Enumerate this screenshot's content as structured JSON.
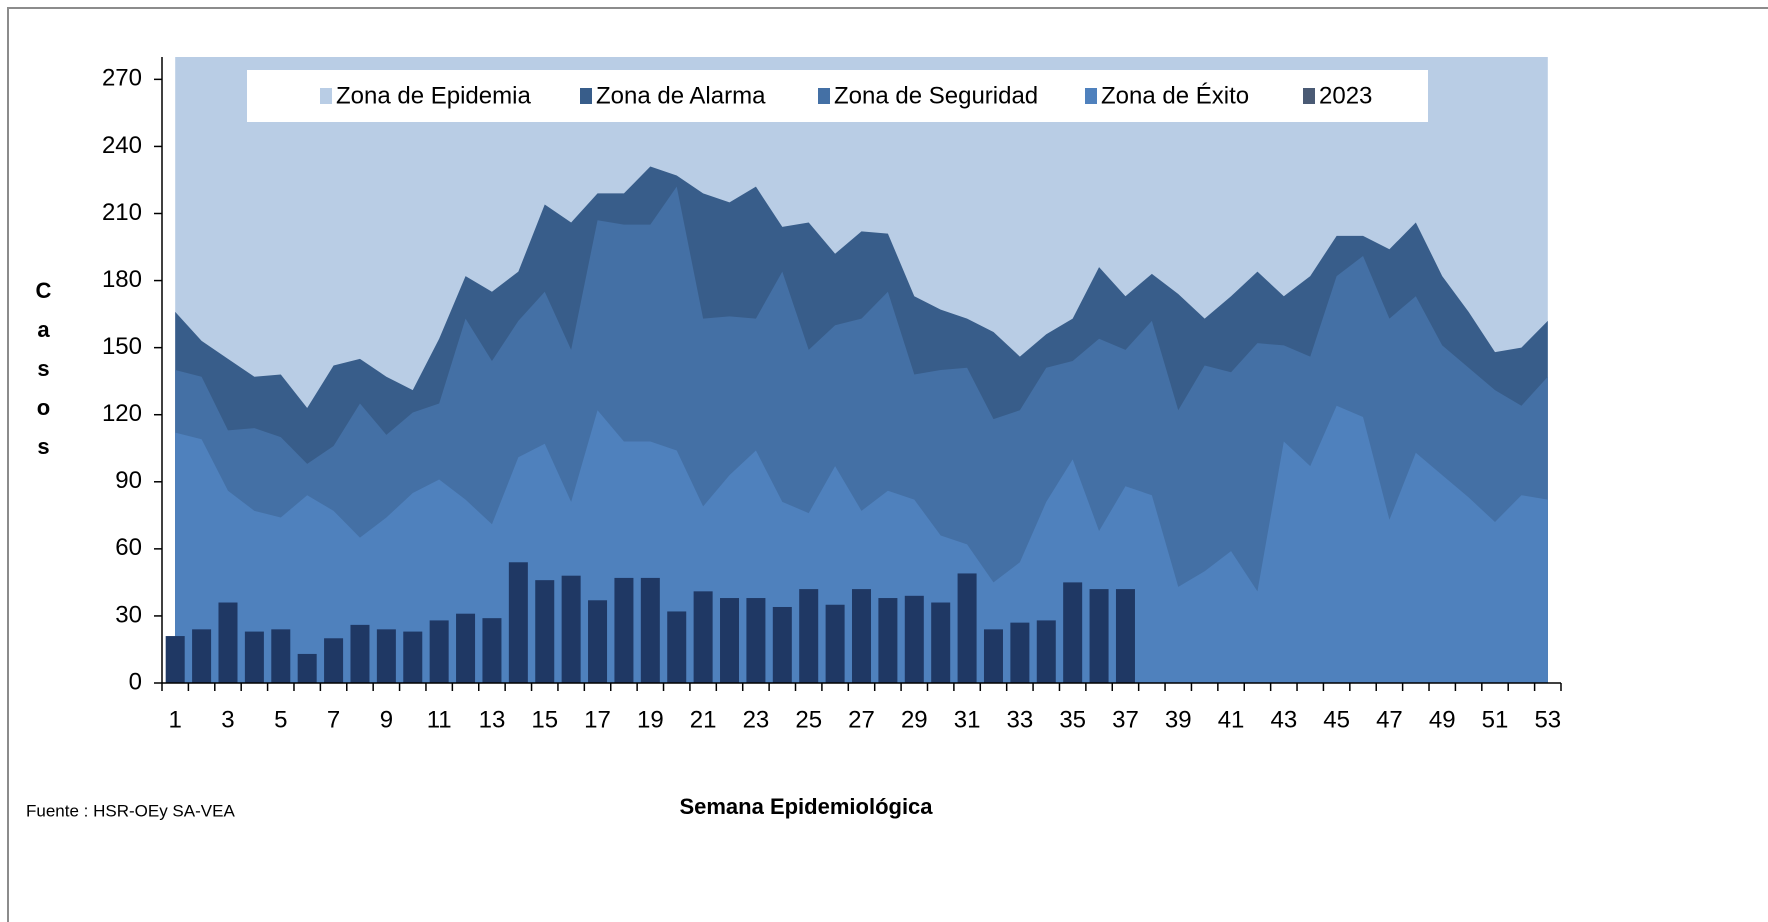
{
  "chart_data": {
    "type": "area",
    "y_label": "Casos",
    "x_label": "Semana Epidemiológica",
    "source": "Fuente : HSR-OEy SA-VEA",
    "categories": [
      1,
      null,
      3,
      null,
      5,
      null,
      7,
      null,
      9,
      null,
      11,
      null,
      13,
      null,
      15,
      null,
      17,
      null,
      19,
      null,
      21,
      null,
      23,
      null,
      25,
      null,
      27,
      null,
      29,
      null,
      31,
      null,
      33,
      null,
      35,
      null,
      37,
      null,
      39,
      null,
      41,
      null,
      43,
      null,
      45,
      null,
      47,
      null,
      49,
      null,
      51,
      null,
      53
    ],
    "ylim": [
      0,
      280
    ],
    "yticks": [
      0,
      30,
      60,
      90,
      120,
      150,
      180,
      210,
      240,
      270
    ],
    "series": [
      {
        "name": "Zona de Epidemia",
        "color": "#b9cde5",
        "kind": "area",
        "values": [
          280,
          280,
          280,
          280,
          280,
          280,
          280,
          280,
          280,
          280,
          280,
          280,
          280,
          280,
          280,
          280,
          280,
          280,
          280,
          280,
          280,
          280,
          280,
          280,
          280,
          280,
          280,
          280,
          280,
          280,
          280,
          280,
          280,
          280,
          280,
          280,
          280,
          280,
          280,
          280,
          280,
          280,
          280,
          280,
          280,
          280,
          280,
          280,
          280,
          280,
          280,
          280,
          280
        ]
      },
      {
        "name": "Zona de Alarma",
        "color": "#385d8a",
        "kind": "area",
        "values": [
          166,
          153,
          145,
          137,
          138,
          123,
          142,
          145,
          137,
          131,
          154,
          182,
          175,
          184,
          214,
          206,
          219,
          219,
          231,
          227,
          219,
          215,
          222,
          204,
          206,
          192,
          202,
          201,
          173,
          167,
          163,
          157,
          146,
          156,
          163,
          186,
          173,
          183,
          174,
          163,
          173,
          184,
          173,
          182,
          200,
          200,
          194,
          206,
          182,
          166,
          148,
          150,
          162
        ]
      },
      {
        "name": "Zona de Seguridad",
        "color": "#4470a5",
        "kind": "area",
        "values": [
          140,
          137,
          113,
          114,
          110,
          98,
          106,
          125,
          111,
          121,
          125,
          163,
          144,
          162,
          175,
          149,
          207,
          205,
          205,
          222,
          163,
          164,
          163,
          184,
          149,
          160,
          163,
          175,
          138,
          140,
          141,
          118,
          122,
          141,
          144,
          154,
          149,
          162,
          122,
          142,
          139,
          152,
          151,
          146,
          182,
          191,
          163,
          173,
          151,
          141,
          131,
          124,
          137
        ]
      },
      {
        "name": "Zona de Éxito",
        "color": "#4f81bd",
        "kind": "area",
        "values": [
          112,
          109,
          86,
          77,
          74,
          84,
          77,
          65,
          74,
          85,
          91,
          82,
          71,
          101,
          107,
          81,
          122,
          108,
          108,
          104,
          79,
          93,
          104,
          81,
          76,
          97,
          77,
          86,
          82,
          66,
          62,
          45,
          54,
          81,
          100,
          68,
          88,
          84,
          43,
          50,
          59,
          41,
          108,
          97,
          124,
          119,
          73,
          103,
          93,
          83,
          72,
          84,
          82
        ]
      },
      {
        "name": "2023",
        "color": "#1f3864",
        "legend_color": "#4a5a74",
        "kind": "bar",
        "values": [
          21,
          24,
          36,
          23,
          24,
          13,
          20,
          26,
          24,
          23,
          28,
          31,
          29,
          54,
          46,
          48,
          37,
          47,
          47,
          32,
          41,
          38,
          38,
          34,
          42,
          35,
          42,
          38,
          39,
          36,
          49,
          24,
          27,
          28,
          45,
          42,
          42,
          null,
          null,
          null,
          null,
          null,
          null,
          null,
          null,
          null,
          null,
          null,
          null,
          null,
          null,
          null,
          null
        ]
      }
    ]
  }
}
